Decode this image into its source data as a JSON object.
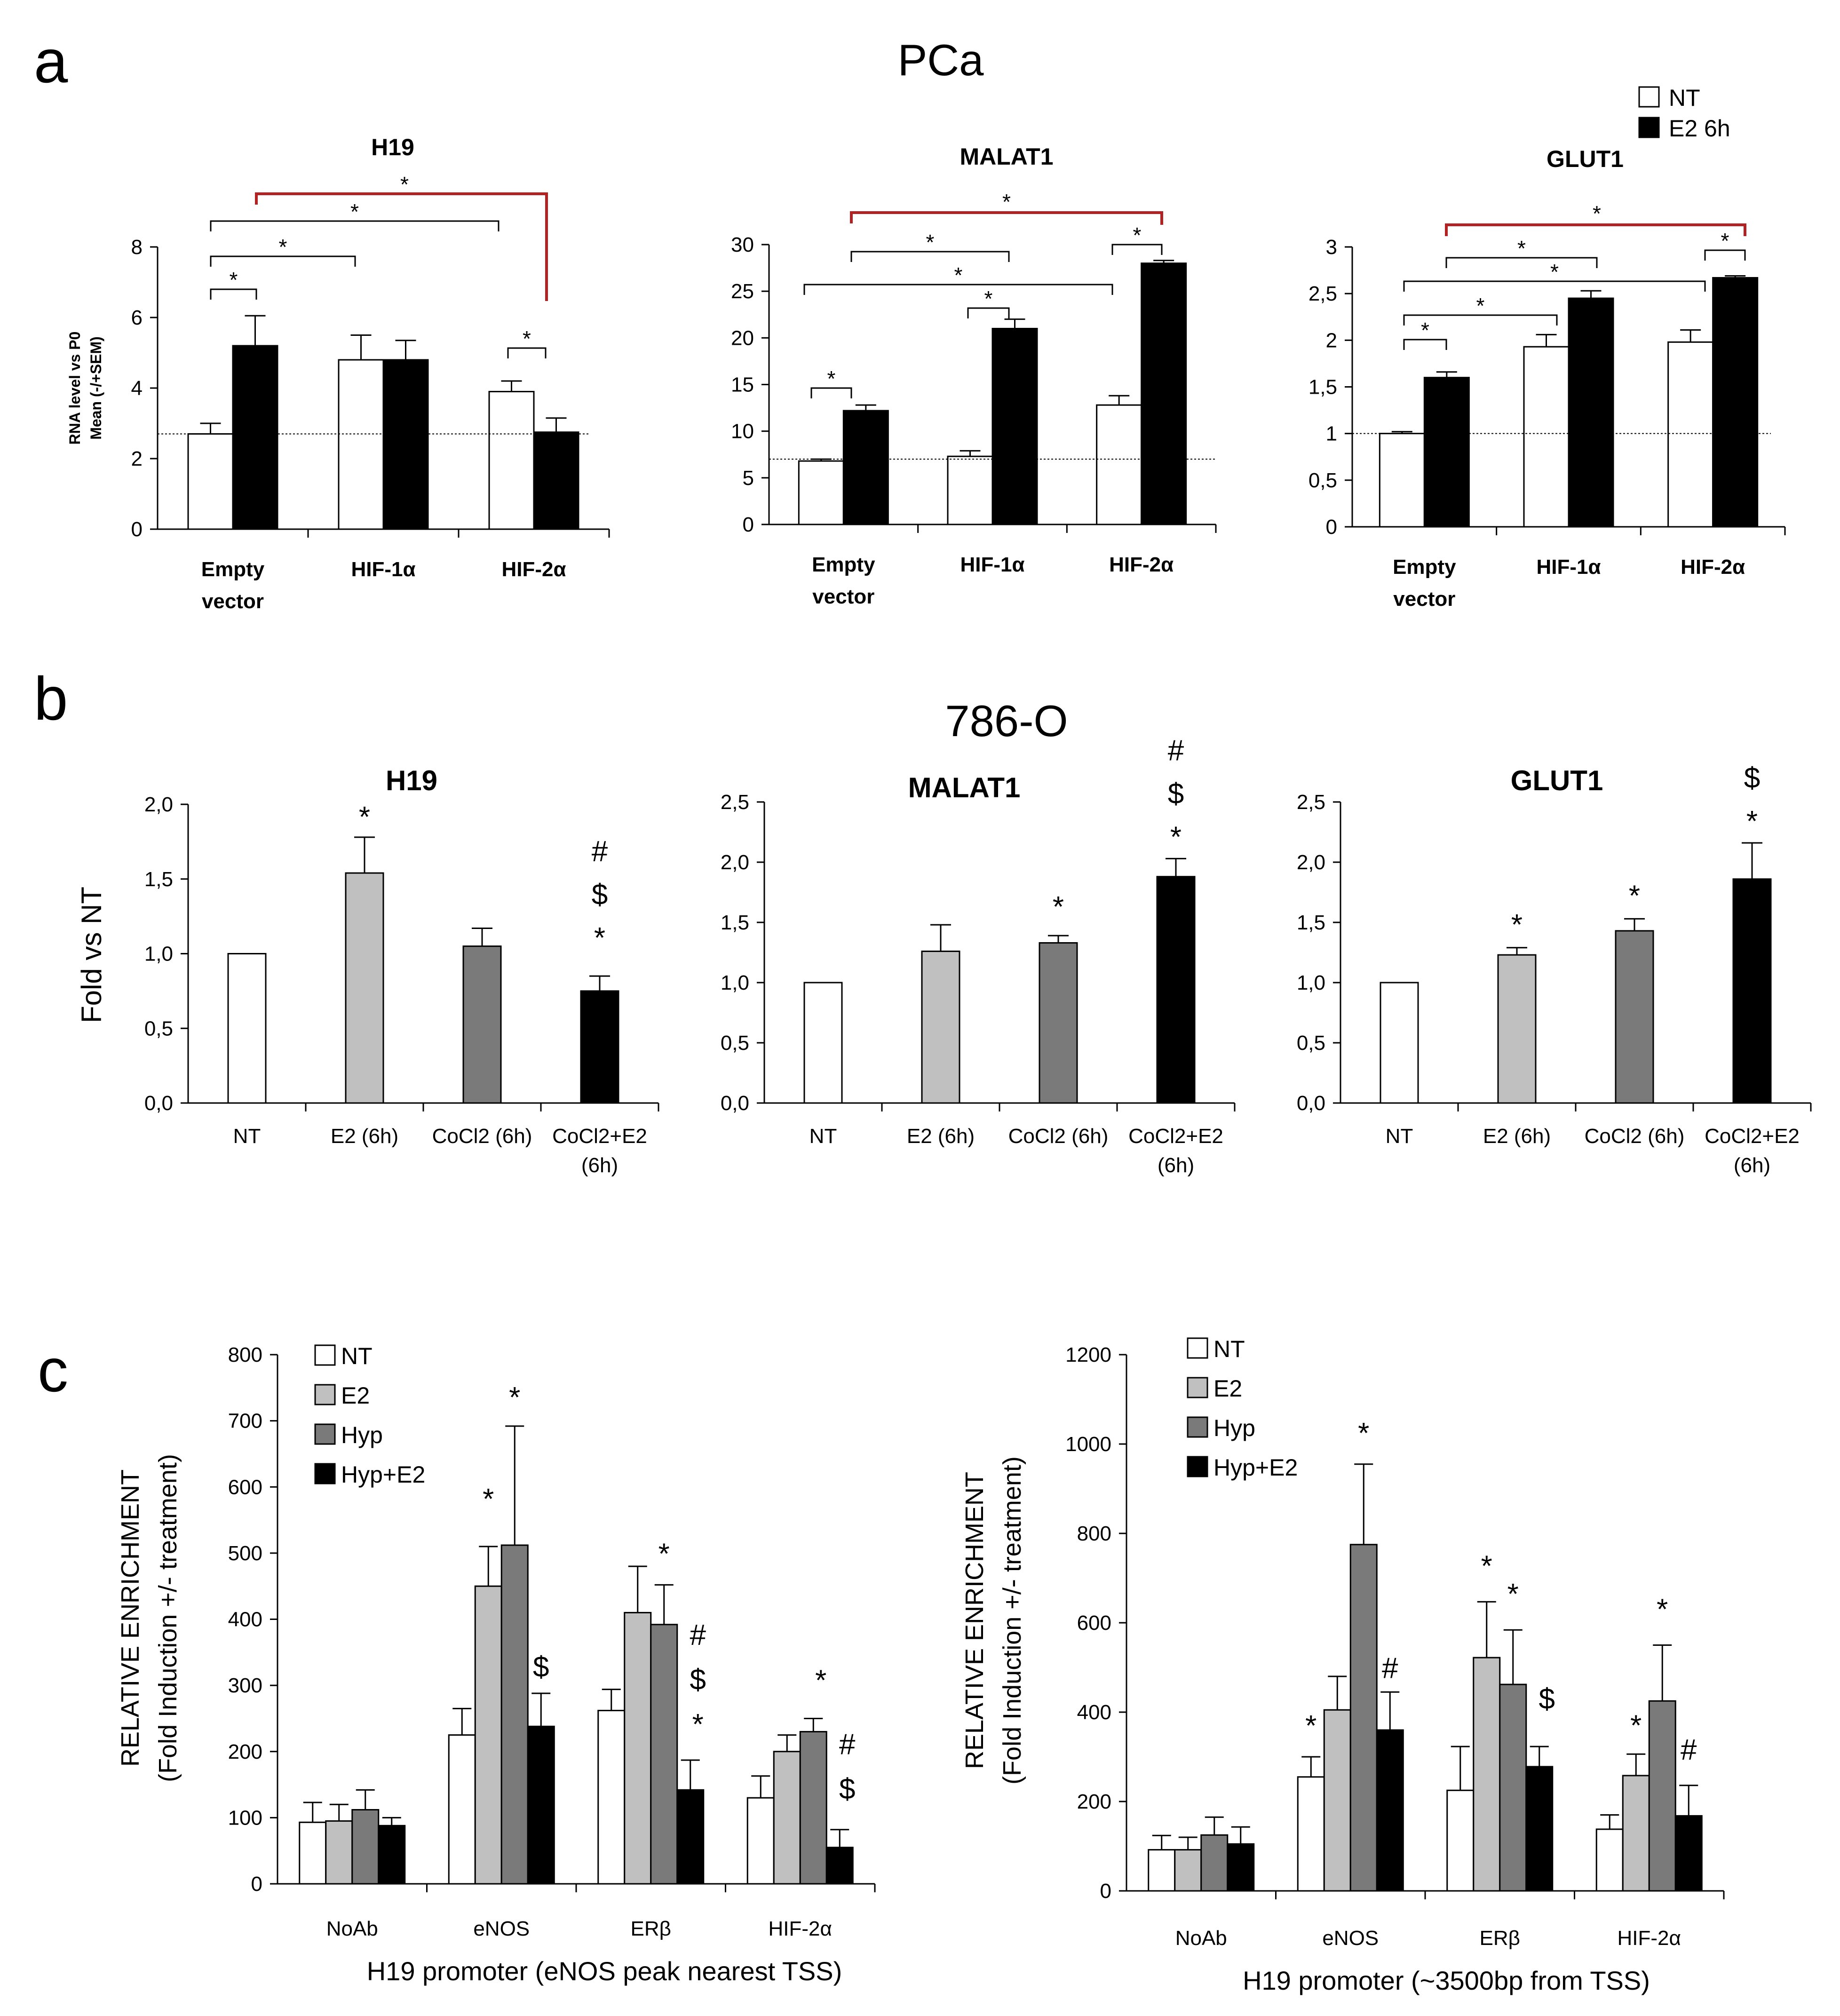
{
  "figure": {
    "panel_a_label": "a",
    "panel_a_title": "PCa",
    "panel_b_label": "b",
    "panel_b_title": "786-O",
    "panel_c_label": "c"
  },
  "colors": {
    "NT": "#ffffff",
    "E2 6h": "#000000",
    "E2": "#c0c0c0",
    "CoCl2": "#7a7a7a",
    "CoCl2+E2": "#000000",
    "Hyp": "#7a7a7a",
    "Hyp+E2": "#000000",
    "red_bracket": "#b22222"
  },
  "chart_data": [
    {
      "id": "a-h19",
      "panel": "a",
      "type": "bar",
      "title": "H19",
      "ylabel": [
        "RNA level vs P0",
        "Mean (-/+SEM)"
      ],
      "categories": [
        "Empty vector",
        "HIF-1α",
        "HIF-2α"
      ],
      "ylim": [
        0,
        8
      ],
      "yticks": [
        0,
        2,
        4,
        6,
        8
      ],
      "baseline": 2.7,
      "series": [
        {
          "name": "NT",
          "values": [
            2.7,
            4.8,
            3.9
          ],
          "errors": [
            0.3,
            0.7,
            0.3
          ]
        },
        {
          "name": "E2 6h",
          "values": [
            5.2,
            4.8,
            2.75
          ],
          "errors": [
            0.85,
            0.55,
            0.4
          ]
        }
      ],
      "annotations": [
        "*",
        "*",
        "*",
        "*",
        "*"
      ]
    },
    {
      "id": "a-malat1",
      "panel": "a",
      "type": "bar",
      "title": "MALAT1",
      "categories": [
        "Empty vector",
        "HIF-1α",
        "HIF-2α"
      ],
      "ylim": [
        0,
        30
      ],
      "yticks": [
        0,
        5,
        10,
        15,
        20,
        25,
        30
      ],
      "baseline": 7,
      "series": [
        {
          "name": "NT",
          "values": [
            6.8,
            7.3,
            12.8
          ],
          "errors": [
            0.2,
            0.6,
            1.0
          ]
        },
        {
          "name": "E2 6h",
          "values": [
            12.2,
            21.0,
            28.0
          ],
          "errors": [
            0.6,
            1.0,
            0.3
          ]
        }
      ],
      "annotations": [
        "*",
        "*",
        "*",
        "*",
        "*",
        "*"
      ]
    },
    {
      "id": "a-glut1",
      "panel": "a",
      "type": "bar",
      "title": "GLUT1",
      "categories": [
        "Empty vector",
        "HIF-1α",
        "HIF-2α"
      ],
      "ylim": [
        0,
        3
      ],
      "yticks": [
        "0",
        "0,5",
        "1",
        "1,5",
        "2",
        "2,5",
        "3"
      ],
      "baseline": 1,
      "series": [
        {
          "name": "NT",
          "values": [
            1.0,
            1.93,
            1.98
          ],
          "errors": [
            0.02,
            0.13,
            0.13
          ]
        },
        {
          "name": "E2 6h",
          "values": [
            1.6,
            2.45,
            2.67
          ],
          "errors": [
            0.06,
            0.08,
            0.02
          ]
        }
      ],
      "legend": [
        "NT",
        "E2 6h"
      ],
      "annotations": [
        "*",
        "*",
        "*",
        "*",
        "*",
        "*",
        "*"
      ]
    },
    {
      "id": "b-h19",
      "panel": "b",
      "type": "bar",
      "title": "H19",
      "ylabel": "Fold vs NT",
      "categories": [
        "NT",
        "E2 (6h)",
        "CoCl2 (6h)",
        "CoCl2+E2 (6h)"
      ],
      "ylim": [
        0,
        2
      ],
      "yticks": [
        "0,0",
        "0,5",
        "1,0",
        "1,5",
        "2,0"
      ],
      "series": [
        {
          "name": "fold",
          "values": [
            1.0,
            1.54,
            1.05,
            0.75
          ],
          "errors": [
            0,
            0.24,
            0.12,
            0.1
          ]
        }
      ],
      "annotations": [
        [
          "*"
        ],
        [],
        [
          "#",
          "$",
          "*"
        ]
      ]
    },
    {
      "id": "b-malat1",
      "panel": "b",
      "type": "bar",
      "title": "MALAT1",
      "categories": [
        "NT",
        "E2 (6h)",
        "CoCl2 (6h)",
        "CoCl2+E2 (6h)"
      ],
      "ylim": [
        0,
        2.5
      ],
      "yticks": [
        "0,0",
        "0,5",
        "1,0",
        "1,5",
        "2,0",
        "2,5"
      ],
      "series": [
        {
          "name": "fold",
          "values": [
            1.0,
            1.26,
            1.33,
            1.88
          ],
          "errors": [
            0,
            0.22,
            0.06,
            0.15
          ]
        }
      ],
      "annotations": [
        [],
        [
          "*"
        ],
        [
          "#",
          "$",
          "*"
        ]
      ]
    },
    {
      "id": "b-glut1",
      "panel": "b",
      "type": "bar",
      "title": "GLUT1",
      "categories": [
        "NT",
        "E2 (6h)",
        "CoCl2 (6h)",
        "CoCl2+E2 (6h)"
      ],
      "ylim": [
        0,
        2.5
      ],
      "yticks": [
        "0,0",
        "0,5",
        "1,0",
        "1,5",
        "2,0",
        "2,5"
      ],
      "series": [
        {
          "name": "fold",
          "values": [
            1.0,
            1.23,
            1.43,
            1.86
          ],
          "errors": [
            0,
            0.06,
            0.1,
            0.3
          ]
        }
      ],
      "annotations": [
        [
          "*"
        ],
        [
          "*"
        ],
        [
          "$",
          "*"
        ]
      ]
    },
    {
      "id": "c-left",
      "panel": "c",
      "type": "bar",
      "ylabel": [
        "RELATIVE ENRICHMENT",
        "(Fold Induction +/- treatment)"
      ],
      "xlabel": "H19 promoter (eNOS peak nearest TSS)",
      "categories": [
        "NoAb",
        "eNOS",
        "ERβ",
        "HIF-2α"
      ],
      "ylim": [
        0,
        800
      ],
      "yticks": [
        0,
        100,
        200,
        300,
        400,
        500,
        600,
        700,
        800
      ],
      "legend": [
        "NT",
        "E2",
        "Hyp",
        "Hyp+E2"
      ],
      "series": [
        {
          "name": "NT",
          "values": [
            93,
            225,
            262,
            130
          ],
          "errors": [
            30,
            40,
            32,
            33
          ]
        },
        {
          "name": "E2",
          "values": [
            95,
            450,
            410,
            200
          ],
          "errors": [
            25,
            60,
            70,
            25
          ]
        },
        {
          "name": "Hyp",
          "values": [
            112,
            512,
            392,
            230
          ],
          "errors": [
            30,
            180,
            60,
            20
          ]
        },
        {
          "name": "Hyp+E2",
          "values": [
            88,
            238,
            142,
            55
          ],
          "errors": [
            12,
            50,
            45,
            27
          ]
        }
      ],
      "annotations": [
        "*",
        "*",
        "$",
        "*",
        "#",
        "$",
        "*",
        "*",
        "#",
        "$"
      ]
    },
    {
      "id": "c-right",
      "panel": "c",
      "type": "bar",
      "ylabel": [
        "RELATIVE ENRICHMENT",
        "(Fold Induction +/- treatment)"
      ],
      "xlabel": "H19 promoter (~3500bp from TSS)",
      "categories": [
        "NoAb",
        "eNOS",
        "ERβ",
        "HIF-2α"
      ],
      "ylim": [
        0,
        1200
      ],
      "yticks": [
        0,
        200,
        400,
        600,
        800,
        1000,
        1200
      ],
      "legend": [
        "NT",
        "E2",
        "Hyp",
        "Hyp+E2"
      ],
      "series": [
        {
          "name": "NT",
          "values": [
            92,
            255,
            225,
            138
          ],
          "errors": [
            32,
            45,
            98,
            32
          ]
        },
        {
          "name": "E2",
          "values": [
            92,
            405,
            522,
            258
          ],
          "errors": [
            28,
            75,
            125,
            48
          ]
        },
        {
          "name": "Hyp",
          "values": [
            125,
            775,
            462,
            425
          ],
          "errors": [
            40,
            180,
            122,
            125
          ]
        },
        {
          "name": "Hyp+E2",
          "values": [
            105,
            360,
            278,
            168
          ],
          "errors": [
            38,
            85,
            45,
            68
          ]
        }
      ],
      "annotations": [
        "*",
        "*",
        "#",
        "*",
        "*",
        "$",
        "*",
        "*",
        "#"
      ]
    }
  ]
}
